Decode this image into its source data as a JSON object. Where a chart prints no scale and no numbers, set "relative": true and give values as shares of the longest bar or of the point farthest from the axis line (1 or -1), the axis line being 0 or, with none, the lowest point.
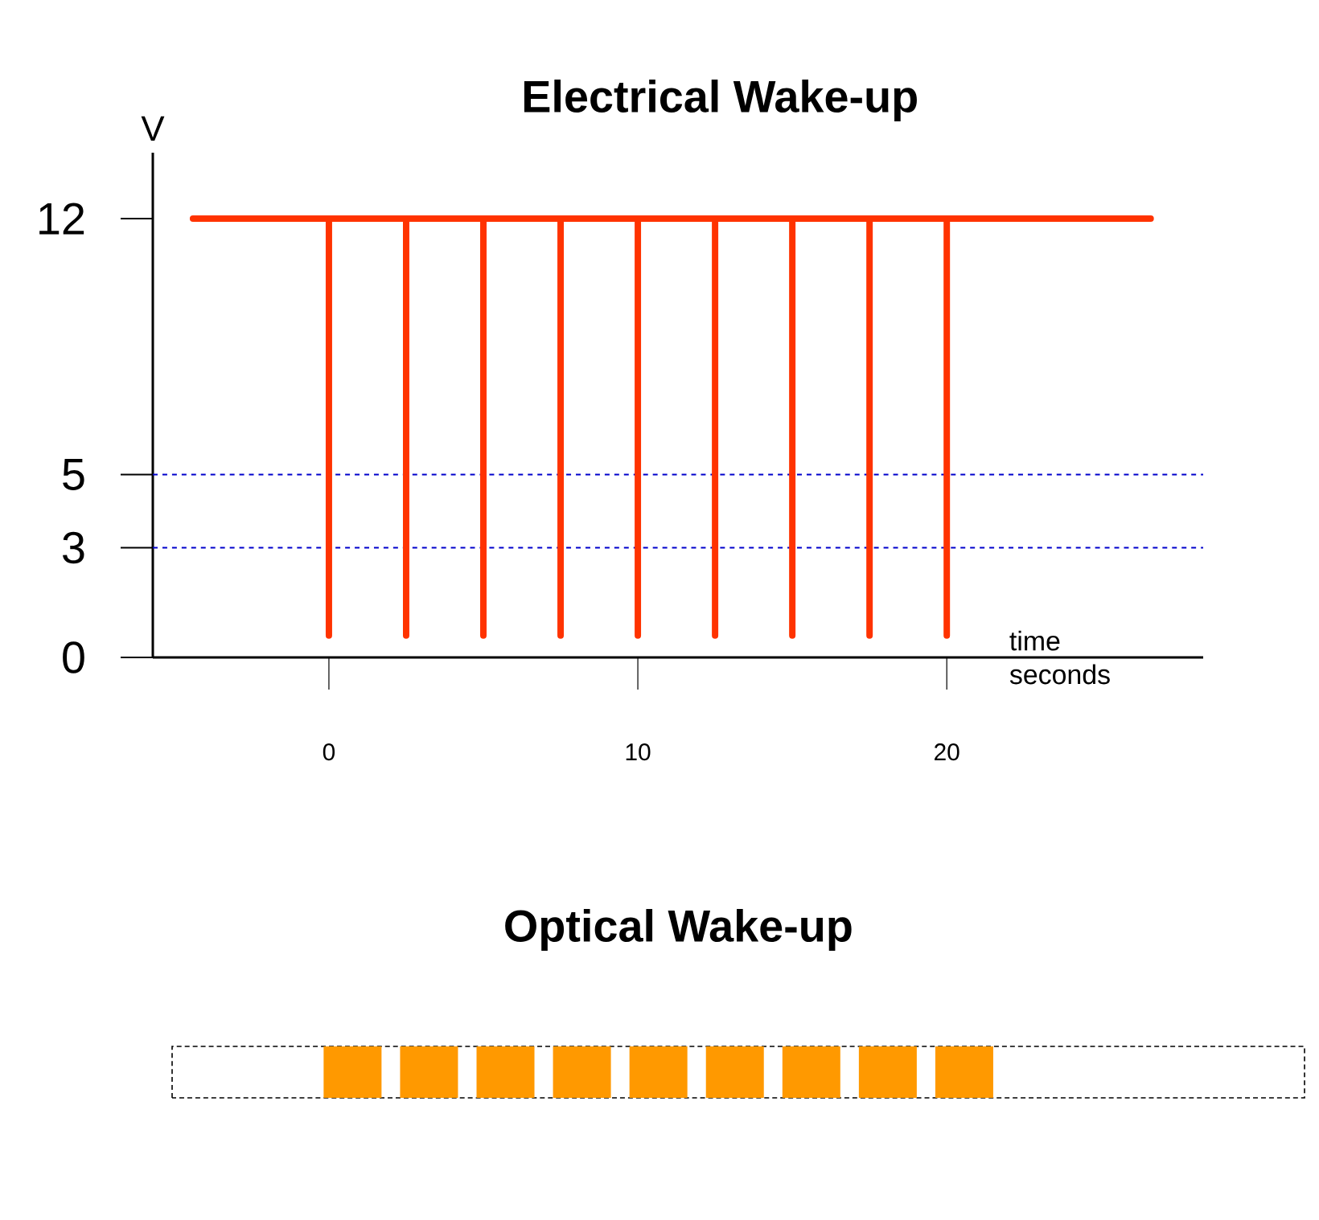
{
  "chart_data": [
    {
      "type": "line",
      "title": "Electrical Wake-up",
      "ylabel": "V",
      "xlabel": "time seconds",
      "series": [
        {
          "color": "#ff3300",
          "x": [
            -4.4,
            0,
            0,
            0,
            2.5,
            2.5,
            2.5,
            5,
            5,
            5,
            7.5,
            7.5,
            7.5,
            10,
            10,
            10,
            12.5,
            12.5,
            12.5,
            15,
            15,
            15,
            17.5,
            17.5,
            17.5,
            20,
            20,
            20,
            26.6
          ],
          "values": [
            12,
            12,
            0.6,
            12,
            12,
            0.6,
            12,
            12,
            0.6,
            12,
            12,
            0.6,
            12,
            12,
            0.6,
            12,
            12,
            0.6,
            12,
            12,
            0.6,
            12,
            12,
            0.6,
            12,
            12,
            0.6,
            12,
            12
          ]
        }
      ],
      "xlim": [
        -5.7,
        28.3
      ],
      "ylim": [
        0,
        13.8
      ],
      "xticks": [
        0,
        10,
        20
      ],
      "yticks": [
        0,
        3,
        5,
        12
      ],
      "ref_lines": [
        {
          "axis": "y",
          "value": 5,
          "color": "#0000cc",
          "line_style": "dashed"
        },
        {
          "axis": "y",
          "value": 3,
          "color": "#0000cc",
          "line_style": "dashed"
        }
      ]
    },
    {
      "type": "bar",
      "title": "Optical Wake-up",
      "relative": true,
      "color": "#ff9900",
      "categories": [
        null,
        null,
        null,
        null,
        null,
        null,
        null,
        null,
        null
      ],
      "values": [
        1,
        1,
        1,
        1,
        1,
        1,
        1,
        1,
        1
      ]
    }
  ]
}
